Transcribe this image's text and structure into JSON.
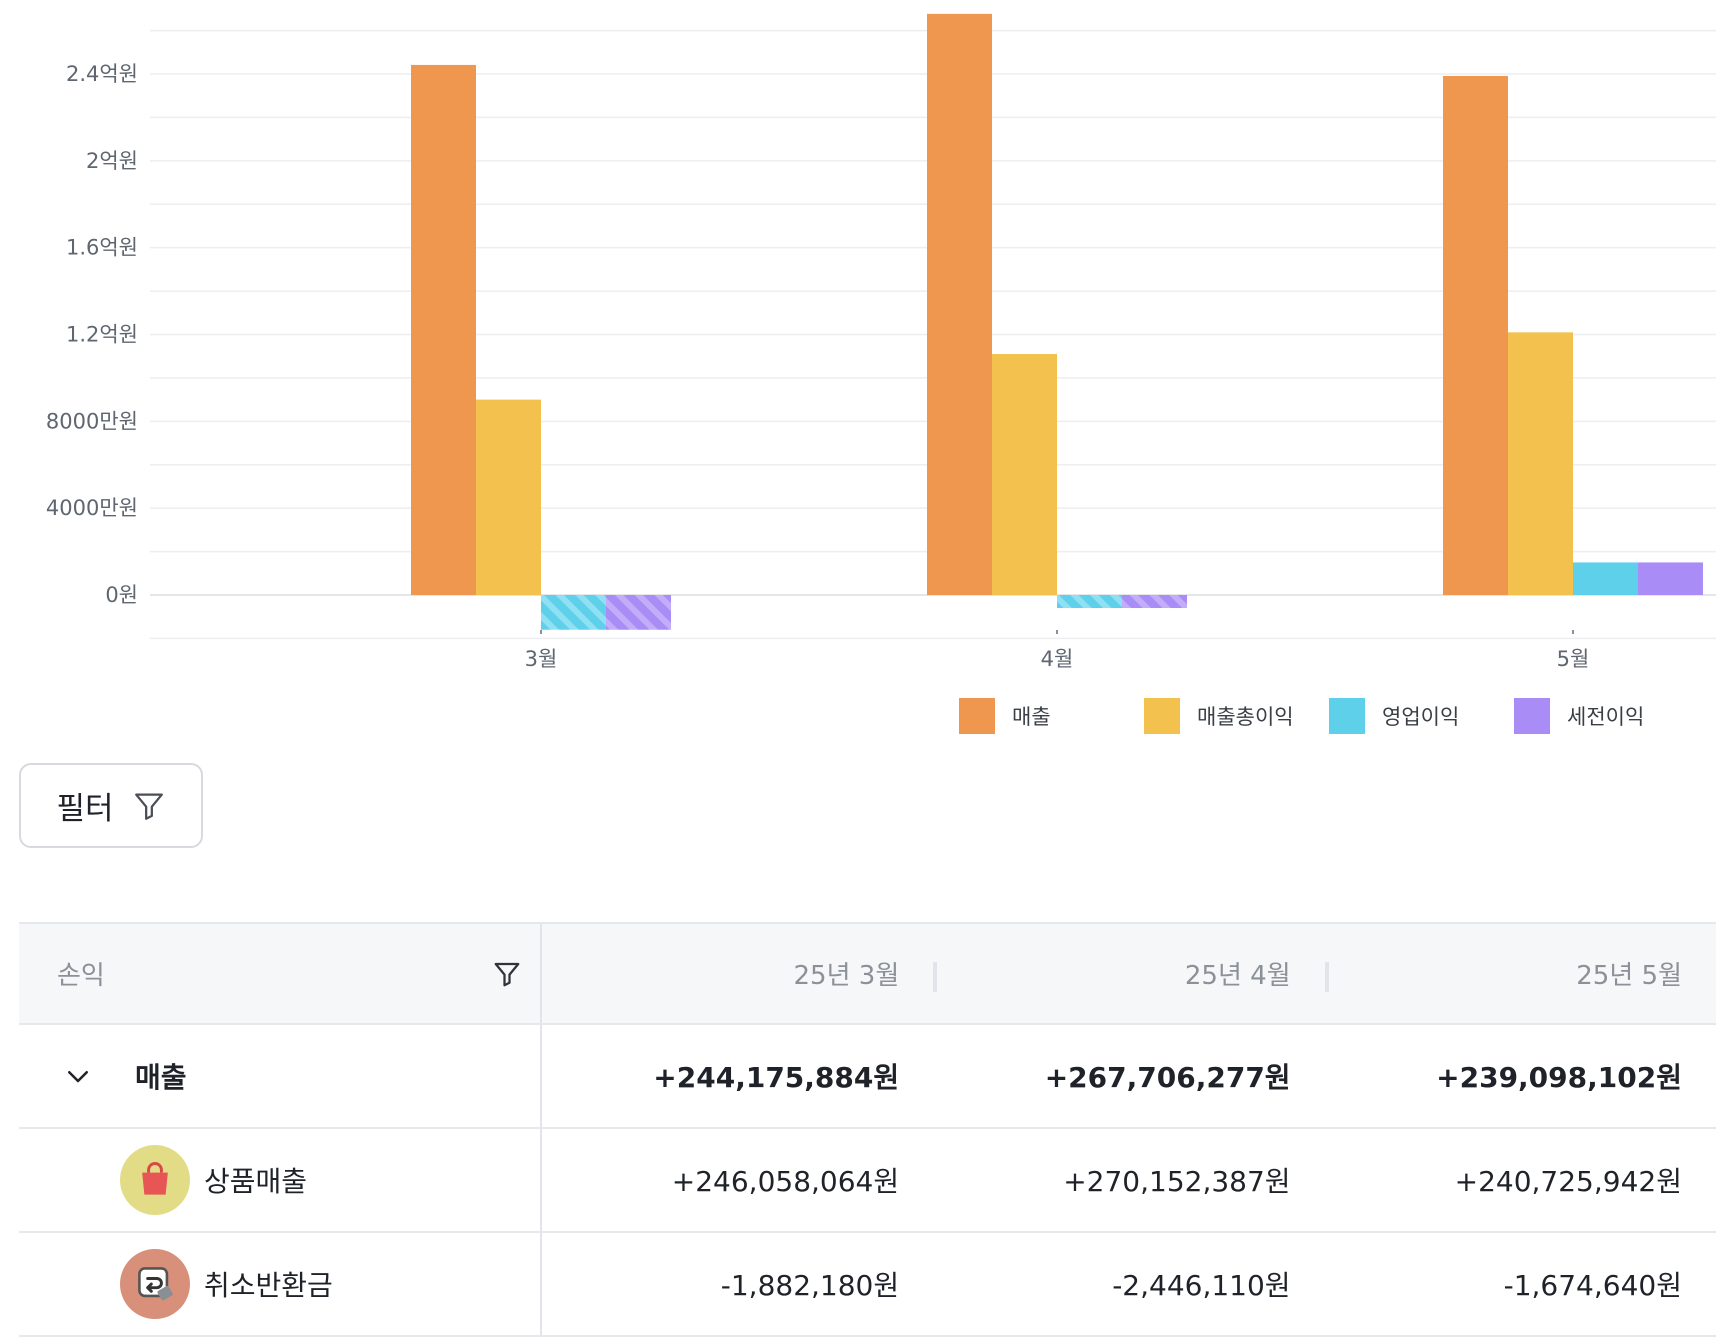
{
  "chart_data": {
    "type": "bar",
    "categories": [
      "3월",
      "4월",
      "5월"
    ],
    "y_ticks": [
      "0원",
      "4000만원",
      "8000만원",
      "1.2억원",
      "1.6억원",
      "2억원",
      "2.4억원"
    ],
    "y_tick_values": [
      0,
      40000000,
      80000000,
      120000000,
      160000000,
      200000000,
      240000000
    ],
    "ylim": [
      -16000000,
      268000000
    ],
    "grid": true,
    "legend_position": "bottom-right",
    "series": [
      {
        "name": "매출",
        "color": "#F0974F",
        "values": [
          244175884,
          267706277,
          239098102
        ]
      },
      {
        "name": "매출총이익",
        "color": "#F2C14E",
        "values": [
          90000000,
          111000000,
          121000000
        ]
      },
      {
        "name": "영업이익",
        "color": "#5FD0EA",
        "values": [
          -16000000,
          -6000000,
          15000000
        ]
      },
      {
        "name": "세전이익",
        "color": "#A98CF5",
        "values": [
          -16000000,
          -6000000,
          15000000
        ]
      }
    ]
  },
  "filter": {
    "label": "필터"
  },
  "table": {
    "header": {
      "first": "손익",
      "cols": [
        "25년 3월",
        "25년 4월",
        "25년 5월"
      ]
    },
    "rows": [
      {
        "name": "매출",
        "values": [
          "+244,175,884원",
          "+267,706,277원",
          "+239,098,102원"
        ]
      },
      {
        "name": "상품매출",
        "icon": "shopping-bag-icon",
        "icon_bg": "#E3DC87",
        "values": [
          "+246,058,064원",
          "+270,152,387원",
          "+240,725,942원"
        ]
      },
      {
        "name": "취소반환금",
        "icon": "refund-return-icon",
        "icon_bg": "#D9907A",
        "values": [
          "-1,882,180원",
          "-2,446,110원",
          "-1,674,640원"
        ]
      }
    ]
  }
}
